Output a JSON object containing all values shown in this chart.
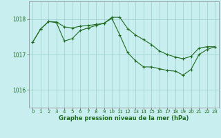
{
  "title": "Graphe pression niveau de la mer (hPa)",
  "bg_color": "#c8eef0",
  "grid_color": "#99cccc",
  "line_color": "#1e6b1e",
  "xlim": [
    -0.5,
    23.5
  ],
  "ylim": [
    1015.5,
    1018.5
  ],
  "x_ticks": [
    0,
    1,
    2,
    3,
    4,
    5,
    6,
    7,
    8,
    9,
    10,
    11,
    12,
    13,
    14,
    15,
    16,
    17,
    18,
    19,
    20,
    21,
    22,
    23
  ],
  "y_ticks": [
    1016,
    1017,
    1018
  ],
  "s1_x": [
    0,
    1,
    2,
    3,
    4,
    5,
    6,
    7,
    8,
    9,
    10,
    11,
    12,
    13,
    14,
    15,
    16,
    17,
    18,
    19,
    20,
    21,
    22,
    23
  ],
  "s1_y": [
    1017.35,
    1017.72,
    1017.93,
    1017.92,
    1017.78,
    1017.75,
    1017.8,
    1017.82,
    1017.85,
    1017.88,
    1018.05,
    1018.05,
    1017.73,
    1017.55,
    1017.42,
    1017.28,
    1017.1,
    1017.0,
    1016.93,
    1016.88,
    1016.95,
    1017.18,
    1017.22,
    1017.22
  ],
  "s2_x": [
    0,
    1,
    2,
    3,
    4,
    5,
    6,
    7,
    8,
    9,
    10,
    11,
    12,
    13,
    14,
    15,
    16,
    17,
    18,
    19,
    20,
    21,
    22,
    23
  ],
  "s2_y": [
    1017.35,
    1017.72,
    1017.93,
    1017.9,
    1017.38,
    1017.45,
    1017.68,
    1017.75,
    1017.82,
    1017.88,
    1018.02,
    1017.55,
    1017.05,
    1016.82,
    1016.65,
    1016.65,
    1016.6,
    1016.55,
    1016.53,
    1016.42,
    1016.58,
    1017.0,
    1017.14,
    1017.22
  ]
}
